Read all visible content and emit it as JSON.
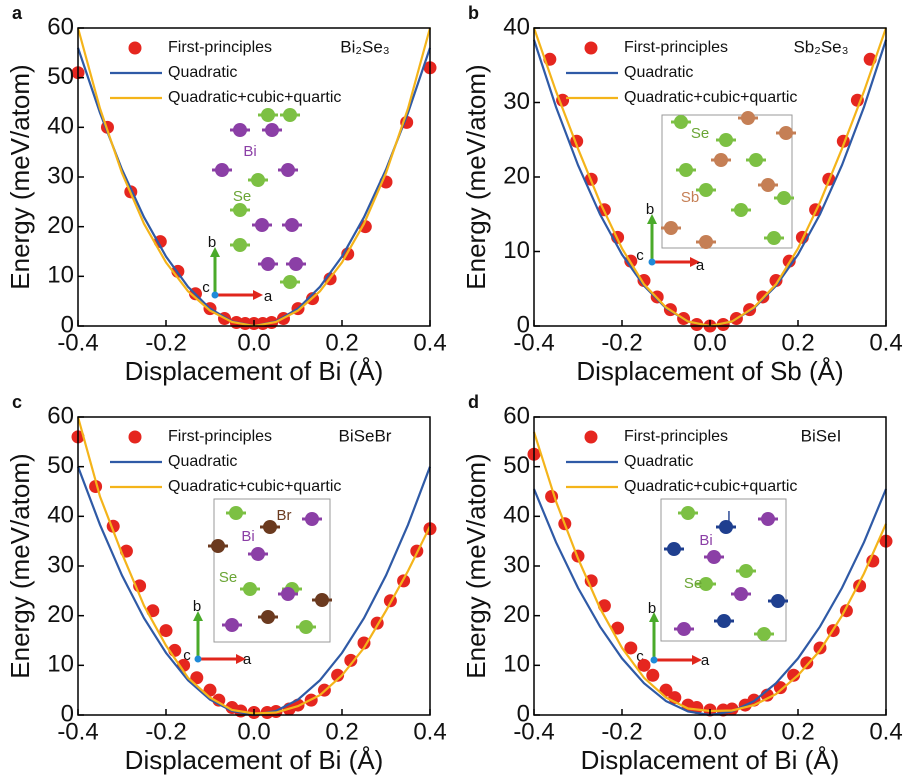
{
  "chart_data": [
    {
      "type": "line",
      "panel_label": "a",
      "material": "Bi₂Se₃",
      "x_label": "Displacement of Bi (Å)",
      "y_label": "Energy (meV/atom)",
      "xlim": [
        -0.4,
        0.4
      ],
      "xticks": [
        -0.4,
        -0.2,
        {
          "value": 0,
          "label": "0.0"
        },
        0.2,
        0.4
      ],
      "ylim": [
        0,
        60
      ],
      "yticks": [
        0,
        10,
        20,
        30,
        40,
        50,
        60
      ],
      "legend": "upper left",
      "annotations": [
        "Bi",
        "Se",
        "a",
        "b",
        "c"
      ],
      "series": [
        {
          "name": "First-principles",
          "type": "scatter",
          "color": "#e5261f",
          "x": [
            -0.4,
            -0.333,
            -0.28,
            -0.213,
            -0.173,
            -0.133,
            -0.1,
            -0.067,
            -0.04,
            -0.02,
            0,
            0.02,
            0.04,
            0.067,
            0.1,
            0.133,
            0.173,
            0.213,
            0.253,
            0.3,
            0.347,
            0.4
          ],
          "values": [
            51,
            40,
            27,
            17,
            11,
            6.5,
            3.5,
            1.5,
            0.7,
            0.5,
            0.5,
            0.5,
            0.7,
            1.5,
            3.5,
            5.5,
            9.5,
            14.5,
            20,
            29,
            41,
            52
          ]
        },
        {
          "name": "Quadratic",
          "type": "line",
          "color": "#2f5aa6",
          "x": [
            -0.4,
            -0.35,
            -0.3,
            -0.25,
            -0.2,
            -0.15,
            -0.1,
            -0.05,
            0,
            0.05,
            0.1,
            0.15,
            0.2,
            0.25,
            0.3,
            0.35,
            0.4
          ],
          "values": [
            56,
            42.9,
            31.5,
            21.9,
            14,
            7.9,
            3.5,
            0.9,
            0,
            0.9,
            3.5,
            7.9,
            14,
            21.9,
            31.5,
            42.9,
            56
          ]
        },
        {
          "name": "Quadratic+cubic+quartic",
          "type": "line",
          "color": "#f4b41a",
          "x": [
            -0.4,
            -0.35,
            -0.3,
            -0.25,
            -0.2,
            -0.15,
            -0.1,
            -0.05,
            0,
            0.05,
            0.1,
            0.15,
            0.2,
            0.25,
            0.3,
            0.35,
            0.4
          ],
          "values": [
            60,
            43.8,
            30.8,
            20.6,
            12.8,
            7,
            3.1,
            0.8,
            0,
            0.8,
            3.1,
            7,
            12.8,
            20.6,
            30.8,
            43.8,
            60
          ]
        }
      ]
    },
    {
      "type": "line",
      "panel_label": "b",
      "material": "Sb₂Se₃",
      "x_label": "Displacement of Sb (Å)",
      "y_label": "Energy (meV/atom)",
      "xlim": [
        -0.4,
        0.4
      ],
      "xticks": [
        -0.4,
        -0.2,
        {
          "value": 0,
          "label": "0.0"
        },
        0.2,
        0.4
      ],
      "ylim": [
        0,
        40
      ],
      "yticks": [
        0,
        10,
        20,
        30,
        40
      ],
      "legend": "upper left",
      "annotations": [
        "Se",
        "Sb",
        "a",
        "b",
        "c"
      ],
      "series": [
        {
          "name": "First-principles",
          "type": "scatter",
          "color": "#e5261f",
          "x": [
            -0.364,
            -0.335,
            -0.303,
            -0.27,
            -0.24,
            -0.21,
            -0.18,
            -0.15,
            -0.12,
            -0.09,
            -0.06,
            -0.03,
            0,
            0.03,
            0.06,
            0.09,
            0.12,
            0.15,
            0.18,
            0.21,
            0.24,
            0.27,
            0.303,
            0.335,
            0.364
          ],
          "values": [
            35.8,
            30.3,
            24.8,
            19.7,
            15.6,
            11.9,
            8.7,
            6.1,
            3.9,
            2.2,
            1,
            0.2,
            0,
            0.2,
            1,
            2.2,
            3.9,
            6.1,
            8.7,
            11.9,
            15.6,
            19.7,
            24.8,
            30.3,
            35.8
          ]
        },
        {
          "name": "Quadratic",
          "type": "line",
          "color": "#2f5aa6",
          "x": [
            -0.4,
            -0.35,
            -0.3,
            -0.25,
            -0.2,
            -0.15,
            -0.1,
            -0.05,
            0,
            0.05,
            0.1,
            0.15,
            0.2,
            0.25,
            0.3,
            0.35,
            0.4
          ],
          "values": [
            38.4,
            29.4,
            21.6,
            15,
            9.6,
            5.4,
            2.4,
            0.6,
            0,
            0.6,
            2.4,
            5.4,
            9.6,
            15,
            21.6,
            29.4,
            38.4
          ]
        },
        {
          "name": "Quadratic+cubic+quartic",
          "type": "line",
          "color": "#f4b41a",
          "x": [
            -0.4,
            -0.35,
            -0.3,
            -0.25,
            -0.2,
            -0.15,
            -0.1,
            -0.05,
            0,
            0.05,
            0.1,
            0.15,
            0.2,
            0.25,
            0.3,
            0.35,
            0.4
          ],
          "values": [
            40,
            31.5,
            23.8,
            16.6,
            10.4,
            5.6,
            2.5,
            0.6,
            0,
            0.6,
            2.5,
            5.6,
            10.4,
            16.6,
            23.8,
            31.5,
            40
          ]
        }
      ]
    },
    {
      "type": "line",
      "panel_label": "c",
      "material": "BiSeBr",
      "x_label": "Displacement of Bi (Å)",
      "y_label": "Energy (meV/atom)",
      "xlim": [
        -0.4,
        0.4
      ],
      "xticks": [
        -0.4,
        -0.2,
        {
          "value": 0,
          "label": "0.0"
        },
        0.2,
        0.4
      ],
      "ylim": [
        0,
        60
      ],
      "yticks": [
        0,
        10,
        20,
        30,
        40,
        50,
        60
      ],
      "legend": "upper left",
      "annotations": [
        "Br",
        "Bi",
        "Se",
        "a",
        "b",
        "c"
      ],
      "series": [
        {
          "name": "First-principles",
          "type": "scatter",
          "color": "#e5261f",
          "x": [
            -0.4,
            -0.36,
            -0.32,
            -0.29,
            -0.26,
            -0.23,
            -0.2,
            -0.18,
            -0.16,
            -0.13,
            -0.1,
            -0.08,
            -0.05,
            -0.03,
            0,
            0.03,
            0.05,
            0.08,
            0.1,
            0.13,
            0.16,
            0.19,
            0.22,
            0.25,
            0.28,
            0.31,
            0.34,
            0.37,
            0.4
          ],
          "values": [
            56,
            46,
            38,
            33,
            26,
            21,
            17,
            13,
            10,
            7.5,
            5,
            3,
            1.5,
            0.8,
            0.5,
            0.5,
            0.7,
            1.2,
            2,
            3,
            5,
            8,
            11,
            14.5,
            18.5,
            23,
            27,
            33,
            37.5
          ]
        },
        {
          "name": "Quadratic",
          "type": "line",
          "color": "#2f5aa6",
          "x": [
            -0.4,
            -0.35,
            -0.3,
            -0.25,
            -0.2,
            -0.15,
            -0.1,
            -0.05,
            0,
            0.05,
            0.1,
            0.15,
            0.2,
            0.25,
            0.3,
            0.35,
            0.4
          ],
          "values": [
            50,
            38.3,
            28.1,
            19.5,
            12.5,
            7,
            3.1,
            0.8,
            0,
            0.8,
            3.1,
            7,
            12.5,
            19.5,
            28.1,
            38.3,
            50
          ]
        },
        {
          "name": "Quadratic+cubic+quartic",
          "type": "line",
          "color": "#f4b41a",
          "x": [
            -0.4,
            -0.35,
            -0.3,
            -0.25,
            -0.2,
            -0.15,
            -0.1,
            -0.05,
            0,
            0.05,
            0.1,
            0.15,
            0.2,
            0.25,
            0.3,
            0.35,
            0.4
          ],
          "values": [
            60,
            44,
            32.5,
            22,
            14,
            7.5,
            3.5,
            1,
            0.3,
            0.5,
            1.8,
            4,
            8,
            13.5,
            21,
            29,
            38
          ]
        }
      ]
    },
    {
      "type": "line",
      "panel_label": "d",
      "material": "BiSeI",
      "x_label": "Displacement of Bi (Å)",
      "y_label": "Energy (meV/atom)",
      "xlim": [
        -0.4,
        0.4
      ],
      "xticks": [
        -0.4,
        -0.2,
        {
          "value": 0,
          "label": "0.0"
        },
        0.2,
        0.4
      ],
      "ylim": [
        0,
        60
      ],
      "yticks": [
        0,
        10,
        20,
        30,
        40,
        50,
        60
      ],
      "legend": "upper left",
      "annotations": [
        "I",
        "Bi",
        "Se",
        "a",
        "b",
        "c"
      ],
      "series": [
        {
          "name": "First-principles",
          "type": "scatter",
          "color": "#e5261f",
          "x": [
            -0.4,
            -0.36,
            -0.33,
            -0.3,
            -0.27,
            -0.24,
            -0.21,
            -0.18,
            -0.15,
            -0.13,
            -0.1,
            -0.08,
            -0.05,
            -0.03,
            0,
            0.03,
            0.05,
            0.08,
            0.1,
            0.13,
            0.16,
            0.19,
            0.22,
            0.25,
            0.28,
            0.31,
            0.34,
            0.37,
            0.4
          ],
          "values": [
            52.5,
            44,
            38.5,
            32,
            27,
            22,
            17.5,
            13.5,
            10,
            8,
            5,
            3.5,
            2,
            1.5,
            1,
            1,
            1.2,
            2,
            3,
            4,
            5.5,
            8,
            10.5,
            13.5,
            17,
            21,
            26,
            31,
            35
          ]
        },
        {
          "name": "Quadratic",
          "type": "line",
          "color": "#2f5aa6",
          "x": [
            -0.4,
            -0.35,
            -0.3,
            -0.25,
            -0.2,
            -0.15,
            -0.1,
            -0.05,
            0,
            0.05,
            0.1,
            0.15,
            0.2,
            0.25,
            0.3,
            0.35,
            0.4
          ],
          "values": [
            45.5,
            34.8,
            25.6,
            17.8,
            11.4,
            6.4,
            2.8,
            0.7,
            0,
            0.7,
            2.8,
            6.4,
            11.4,
            17.8,
            25.6,
            34.8,
            45.5
          ]
        },
        {
          "name": "Quadratic+cubic+quartic",
          "type": "line",
          "color": "#f4b41a",
          "x": [
            -0.4,
            -0.35,
            -0.3,
            -0.25,
            -0.2,
            -0.15,
            -0.1,
            -0.05,
            0,
            0.05,
            0.1,
            0.15,
            0.2,
            0.25,
            0.3,
            0.35,
            0.4
          ],
          "values": [
            57,
            43,
            31.5,
            21.5,
            13.5,
            7.5,
            3.5,
            1.3,
            0.8,
            0.9,
            2,
            4.2,
            8,
            13,
            20,
            28.5,
            38.5
          ]
        }
      ]
    }
  ]
}
